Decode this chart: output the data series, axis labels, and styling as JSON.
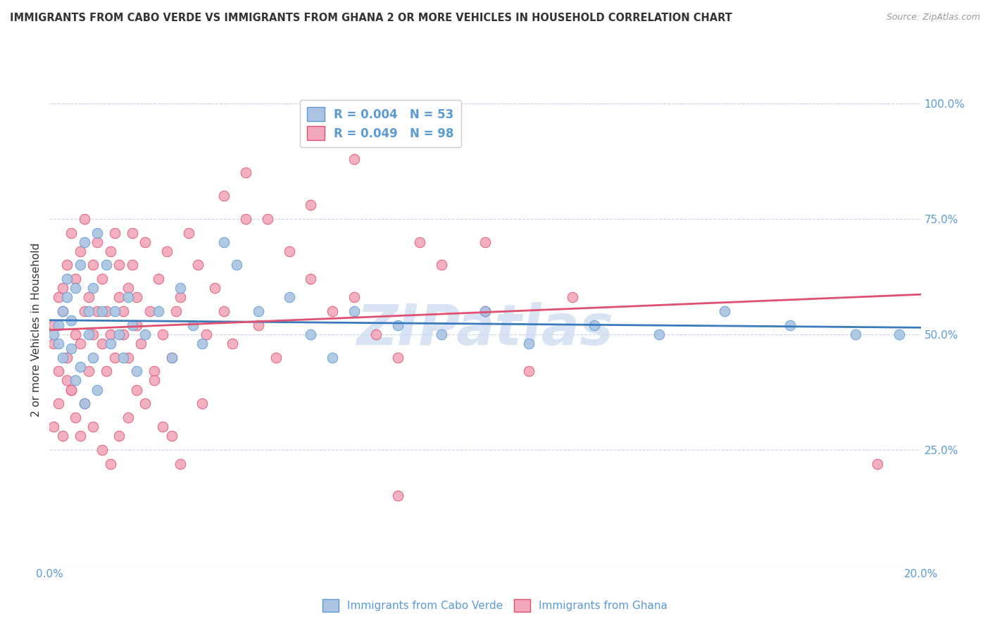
{
  "title": "IMMIGRANTS FROM CABO VERDE VS IMMIGRANTS FROM GHANA 2 OR MORE VEHICLES IN HOUSEHOLD CORRELATION CHART",
  "source": "Source: ZipAtlas.com",
  "ylabel": "2 or more Vehicles in Household",
  "r_cabo_verde": 0.004,
  "n_cabo_verde": 53,
  "r_ghana": 0.049,
  "n_ghana": 98,
  "cabo_verde_color": "#aac4e2",
  "ghana_color": "#f2a8ba",
  "cabo_verde_edge_color": "#5b9bd5",
  "ghana_edge_color": "#e05070",
  "cabo_verde_line_color": "#3a7abf",
  "ghana_line_color": "#e05070",
  "background_color": "#ffffff",
  "watermark": "ZIPatlas",
  "watermark_color": "#c8d8f0",
  "grid_color": "#c8d4e8",
  "xmin": 0.0,
  "xmax": 0.2,
  "ymin": 0.0,
  "ymax": 1.0,
  "ytick_values": [
    0.0,
    0.25,
    0.5,
    0.75,
    1.0
  ],
  "ytick_labels": [
    "",
    "25.0%",
    "50.0%",
    "75.0%",
    "100.0%"
  ],
  "xtick_values": [
    0.0,
    0.2
  ],
  "xtick_labels": [
    "0.0%",
    "20.0%"
  ],
  "legend_text_color": "#5b9bd5",
  "axis_label_color": "#5b9bd5",
  "title_color": "#333333",
  "source_color": "#999999",
  "cabo_verde_x": [
    0.001,
    0.002,
    0.002,
    0.003,
    0.003,
    0.004,
    0.004,
    0.005,
    0.005,
    0.006,
    0.006,
    0.007,
    0.007,
    0.008,
    0.008,
    0.009,
    0.009,
    0.01,
    0.01,
    0.011,
    0.011,
    0.012,
    0.013,
    0.014,
    0.015,
    0.016,
    0.017,
    0.018,
    0.019,
    0.02,
    0.022,
    0.025,
    0.028,
    0.03,
    0.033,
    0.035,
    0.04,
    0.043,
    0.048,
    0.055,
    0.06,
    0.065,
    0.07,
    0.08,
    0.09,
    0.1,
    0.11,
    0.125,
    0.14,
    0.155,
    0.17,
    0.185,
    0.195
  ],
  "cabo_verde_y": [
    0.5,
    0.52,
    0.48,
    0.55,
    0.45,
    0.58,
    0.62,
    0.53,
    0.47,
    0.6,
    0.4,
    0.65,
    0.43,
    0.7,
    0.35,
    0.55,
    0.5,
    0.45,
    0.6,
    0.72,
    0.38,
    0.55,
    0.65,
    0.48,
    0.55,
    0.5,
    0.45,
    0.58,
    0.52,
    0.42,
    0.5,
    0.55,
    0.45,
    0.6,
    0.52,
    0.48,
    0.7,
    0.65,
    0.55,
    0.58,
    0.5,
    0.45,
    0.55,
    0.52,
    0.5,
    0.55,
    0.48,
    0.52,
    0.5,
    0.55,
    0.52,
    0.5,
    0.5
  ],
  "ghana_x": [
    0.001,
    0.001,
    0.002,
    0.002,
    0.003,
    0.003,
    0.004,
    0.004,
    0.005,
    0.005,
    0.006,
    0.006,
    0.007,
    0.007,
    0.008,
    0.008,
    0.009,
    0.009,
    0.01,
    0.01,
    0.011,
    0.011,
    0.012,
    0.012,
    0.013,
    0.013,
    0.014,
    0.014,
    0.015,
    0.015,
    0.016,
    0.016,
    0.017,
    0.017,
    0.018,
    0.018,
    0.019,
    0.019,
    0.02,
    0.02,
    0.021,
    0.022,
    0.023,
    0.024,
    0.025,
    0.026,
    0.027,
    0.028,
    0.029,
    0.03,
    0.032,
    0.034,
    0.036,
    0.038,
    0.04,
    0.042,
    0.045,
    0.048,
    0.052,
    0.055,
    0.06,
    0.065,
    0.07,
    0.075,
    0.08,
    0.085,
    0.09,
    0.1,
    0.11,
    0.12,
    0.001,
    0.002,
    0.003,
    0.004,
    0.005,
    0.006,
    0.007,
    0.008,
    0.01,
    0.012,
    0.014,
    0.016,
    0.018,
    0.02,
    0.022,
    0.024,
    0.026,
    0.028,
    0.03,
    0.035,
    0.04,
    0.045,
    0.05,
    0.06,
    0.07,
    0.08,
    0.1,
    0.19
  ],
  "ghana_y": [
    0.52,
    0.48,
    0.58,
    0.42,
    0.55,
    0.6,
    0.65,
    0.45,
    0.72,
    0.38,
    0.62,
    0.5,
    0.68,
    0.48,
    0.55,
    0.75,
    0.42,
    0.58,
    0.5,
    0.65,
    0.55,
    0.7,
    0.48,
    0.62,
    0.42,
    0.55,
    0.5,
    0.68,
    0.72,
    0.45,
    0.58,
    0.65,
    0.55,
    0.5,
    0.45,
    0.6,
    0.72,
    0.65,
    0.58,
    0.52,
    0.48,
    0.7,
    0.55,
    0.42,
    0.62,
    0.5,
    0.68,
    0.45,
    0.55,
    0.58,
    0.72,
    0.65,
    0.5,
    0.6,
    0.55,
    0.48,
    0.75,
    0.52,
    0.45,
    0.68,
    0.62,
    0.55,
    0.58,
    0.5,
    0.45,
    0.7,
    0.65,
    0.55,
    0.42,
    0.58,
    0.3,
    0.35,
    0.28,
    0.4,
    0.38,
    0.32,
    0.28,
    0.35,
    0.3,
    0.25,
    0.22,
    0.28,
    0.32,
    0.38,
    0.35,
    0.4,
    0.3,
    0.28,
    0.22,
    0.35,
    0.8,
    0.85,
    0.75,
    0.78,
    0.88,
    0.15,
    0.7,
    0.22
  ]
}
